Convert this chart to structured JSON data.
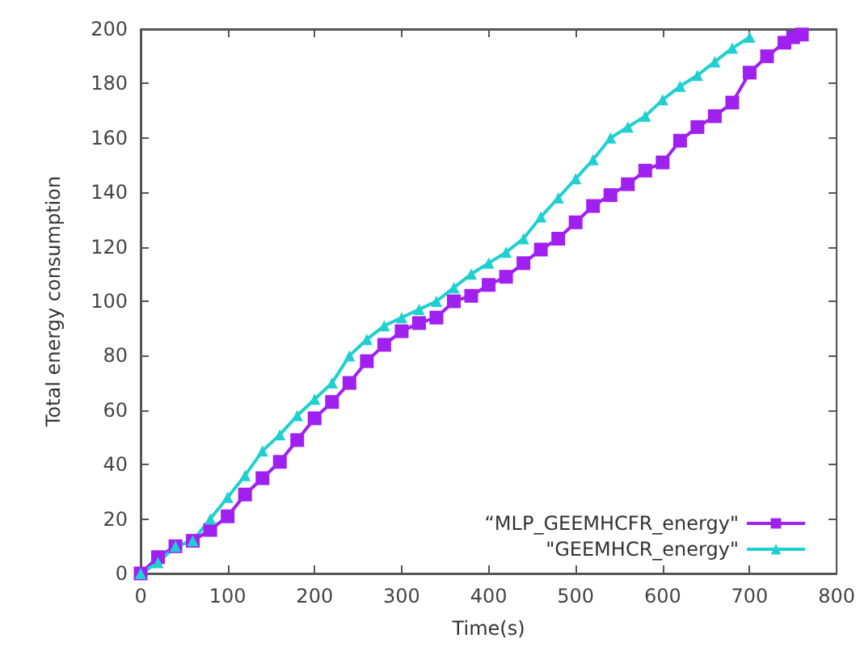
{
  "chart_data": {
    "type": "line",
    "xlabel": "Time(s)",
    "ylabel": "Total energy consumption",
    "xlim": [
      0,
      800
    ],
    "xticks": [
      0,
      100,
      200,
      300,
      400,
      500,
      600,
      700,
      800
    ],
    "ylim": [
      0,
      200
    ],
    "yticks": [
      0,
      20,
      40,
      60,
      80,
      100,
      120,
      140,
      160,
      180,
      200
    ],
    "grid": false,
    "legend": "bottom right",
    "line_style": "solid",
    "series": [
      {
        "name": "“MLP_GEEMHCFR_energy\"",
        "color": "#a020f0",
        "marker": "square",
        "x": [
          0,
          20,
          40,
          60,
          80,
          100,
          120,
          140,
          160,
          180,
          200,
          220,
          240,
          260,
          280,
          300,
          320,
          340,
          360,
          380,
          400,
          420,
          440,
          460,
          480,
          500,
          520,
          540,
          560,
          580,
          600,
          620,
          640,
          660,
          680,
          700,
          720,
          740,
          750,
          760
        ],
        "values": [
          0,
          6,
          10,
          12,
          16,
          21,
          29,
          35,
          41,
          49,
          57,
          63,
          70,
          78,
          84,
          89,
          92,
          94,
          100,
          102,
          106,
          109,
          114,
          119,
          123,
          129,
          135,
          139,
          143,
          148,
          151,
          159,
          164,
          168,
          173,
          184,
          190,
          195,
          197,
          198
        ]
      },
      {
        "name": "\"GEEMHCR_energy\"",
        "color": "#20d0d0",
        "marker": "triangle",
        "x": [
          0,
          20,
          40,
          60,
          80,
          100,
          120,
          140,
          160,
          180,
          200,
          220,
          240,
          260,
          280,
          300,
          320,
          340,
          360,
          380,
          400,
          420,
          440,
          460,
          480,
          500,
          520,
          540,
          560,
          580,
          600,
          620,
          640,
          660,
          680,
          700
        ],
        "values": [
          0,
          4,
          10,
          12,
          20,
          28,
          36,
          45,
          51,
          58,
          64,
          70,
          80,
          86,
          91,
          94,
          97,
          100,
          105,
          110,
          114,
          118,
          123,
          131,
          138,
          145,
          152,
          160,
          164,
          168,
          174,
          179,
          183,
          188,
          193,
          197
        ]
      }
    ]
  }
}
